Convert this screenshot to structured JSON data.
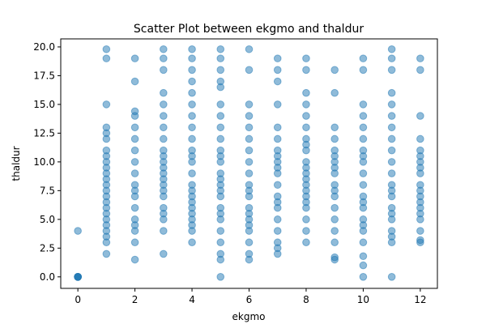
{
  "chart_data": {
    "type": "scatter",
    "title": "Scatter Plot between ekgmo and thaldur",
    "xlabel": "ekgmo",
    "ylabel": "thaldur",
    "xlim": [
      -0.6,
      12.6
    ],
    "ylim": [
      -1.0,
      20.7
    ],
    "xticks": [
      0,
      2,
      4,
      6,
      8,
      10,
      12
    ],
    "yticks": [
      0.0,
      2.5,
      5.0,
      7.5,
      10.0,
      12.5,
      15.0,
      17.5,
      20.0
    ],
    "xtick_labels": [
      "0",
      "2",
      "4",
      "6",
      "8",
      "10",
      "12"
    ],
    "ytick_labels": [
      "0.0",
      "2.5",
      "5.0",
      "7.5",
      "10.0",
      "12.5",
      "15.0",
      "17.5",
      "20.0"
    ],
    "grid": false,
    "legend": "none",
    "point_color": "#1f77b4",
    "point_alpha": 0.5,
    "series": [
      {
        "points": [
          [
            0,
            0
          ],
          [
            0,
            0
          ],
          [
            0,
            0
          ],
          [
            0,
            0
          ],
          [
            0,
            0
          ],
          [
            0,
            4
          ],
          [
            1,
            2
          ],
          [
            1,
            3
          ],
          [
            1,
            3.5
          ],
          [
            1,
            4
          ],
          [
            1,
            4.5
          ],
          [
            1,
            5
          ],
          [
            1,
            5.5
          ],
          [
            1,
            6
          ],
          [
            1,
            6.5
          ],
          [
            1,
            7
          ],
          [
            1,
            7.5
          ],
          [
            1,
            8
          ],
          [
            1,
            8.5
          ],
          [
            1,
            9
          ],
          [
            1,
            9.5
          ],
          [
            1,
            10
          ],
          [
            1,
            10.5
          ],
          [
            1,
            11
          ],
          [
            1,
            12
          ],
          [
            1,
            12.5
          ],
          [
            1,
            13
          ],
          [
            1,
            15
          ],
          [
            1,
            19
          ],
          [
            1,
            19.8
          ],
          [
            2,
            1.5
          ],
          [
            2,
            3
          ],
          [
            2,
            4
          ],
          [
            2,
            4.5
          ],
          [
            2,
            5
          ],
          [
            2,
            6
          ],
          [
            2,
            7
          ],
          [
            2,
            7.5
          ],
          [
            2,
            8
          ],
          [
            2,
            9
          ],
          [
            2,
            10
          ],
          [
            2,
            11
          ],
          [
            2,
            12
          ],
          [
            2,
            13
          ],
          [
            2,
            14
          ],
          [
            2,
            14.4
          ],
          [
            2,
            17
          ],
          [
            2,
            19
          ],
          [
            3,
            2
          ],
          [
            3,
            4
          ],
          [
            3,
            5
          ],
          [
            3,
            5.5
          ],
          [
            3,
            6
          ],
          [
            3,
            7
          ],
          [
            3,
            7.5
          ],
          [
            3,
            8
          ],
          [
            3,
            8.5
          ],
          [
            3,
            9
          ],
          [
            3,
            9.5
          ],
          [
            3,
            10
          ],
          [
            3,
            10.5
          ],
          [
            3,
            11
          ],
          [
            3,
            12
          ],
          [
            3,
            13
          ],
          [
            3,
            14
          ],
          [
            3,
            15
          ],
          [
            3,
            16
          ],
          [
            3,
            18
          ],
          [
            3,
            19
          ],
          [
            3,
            19.8
          ],
          [
            4,
            3
          ],
          [
            4,
            4
          ],
          [
            4,
            4.5
          ],
          [
            4,
            5
          ],
          [
            4,
            5.5
          ],
          [
            4,
            6
          ],
          [
            4,
            6.5
          ],
          [
            4,
            7
          ],
          [
            4,
            7.5
          ],
          [
            4,
            8
          ],
          [
            4,
            9
          ],
          [
            4,
            10
          ],
          [
            4,
            10.5
          ],
          [
            4,
            11
          ],
          [
            4,
            12
          ],
          [
            4,
            13
          ],
          [
            4,
            14
          ],
          [
            4,
            15
          ],
          [
            4,
            16
          ],
          [
            4,
            17
          ],
          [
            4,
            18
          ],
          [
            4,
            19
          ],
          [
            4,
            19.8
          ],
          [
            5,
            0
          ],
          [
            5,
            1.5
          ],
          [
            5,
            2
          ],
          [
            5,
            3
          ],
          [
            5,
            4
          ],
          [
            5,
            5
          ],
          [
            5,
            5.5
          ],
          [
            5,
            6
          ],
          [
            5,
            7
          ],
          [
            5,
            7.5
          ],
          [
            5,
            8
          ],
          [
            5,
            8.5
          ],
          [
            5,
            9
          ],
          [
            5,
            10
          ],
          [
            5,
            10.5
          ],
          [
            5,
            11
          ],
          [
            5,
            12
          ],
          [
            5,
            13
          ],
          [
            5,
            14
          ],
          [
            5,
            15
          ],
          [
            5,
            16.5
          ],
          [
            5,
            17
          ],
          [
            5,
            18
          ],
          [
            5,
            19
          ],
          [
            5,
            19.8
          ],
          [
            6,
            1.5
          ],
          [
            6,
            2
          ],
          [
            6,
            3
          ],
          [
            6,
            4
          ],
          [
            6,
            4.5
          ],
          [
            6,
            5
          ],
          [
            6,
            5.5
          ],
          [
            6,
            6
          ],
          [
            6,
            7
          ],
          [
            6,
            7.5
          ],
          [
            6,
            8
          ],
          [
            6,
            9
          ],
          [
            6,
            10
          ],
          [
            6,
            11
          ],
          [
            6,
            12
          ],
          [
            6,
            13
          ],
          [
            6,
            14
          ],
          [
            6,
            15
          ],
          [
            6,
            18
          ],
          [
            6,
            19.8
          ],
          [
            7,
            2
          ],
          [
            7,
            2.5
          ],
          [
            7,
            3
          ],
          [
            7,
            4
          ],
          [
            7,
            5
          ],
          [
            7,
            6
          ],
          [
            7,
            6.5
          ],
          [
            7,
            7
          ],
          [
            7,
            8
          ],
          [
            7,
            9
          ],
          [
            7,
            9.5
          ],
          [
            7,
            10
          ],
          [
            7,
            10.5
          ],
          [
            7,
            11
          ],
          [
            7,
            12
          ],
          [
            7,
            13
          ],
          [
            7,
            15
          ],
          [
            7,
            17
          ],
          [
            7,
            18
          ],
          [
            7,
            19
          ],
          [
            8,
            3
          ],
          [
            8,
            4
          ],
          [
            8,
            5
          ],
          [
            8,
            6
          ],
          [
            8,
            6.5
          ],
          [
            8,
            7
          ],
          [
            8,
            7.5
          ],
          [
            8,
            8
          ],
          [
            8,
            8.5
          ],
          [
            8,
            9
          ],
          [
            8,
            9.5
          ],
          [
            8,
            10
          ],
          [
            8,
            11
          ],
          [
            8,
            11.5
          ],
          [
            8,
            12
          ],
          [
            8,
            13
          ],
          [
            8,
            14
          ],
          [
            8,
            15
          ],
          [
            8,
            16
          ],
          [
            8,
            18
          ],
          [
            8,
            19
          ],
          [
            9,
            1.5
          ],
          [
            9,
            1.7
          ],
          [
            9,
            3
          ],
          [
            9,
            4
          ],
          [
            9,
            5
          ],
          [
            9,
            6
          ],
          [
            9,
            7
          ],
          [
            9,
            7.5
          ],
          [
            9,
            8
          ],
          [
            9,
            9
          ],
          [
            9,
            9.5
          ],
          [
            9,
            10
          ],
          [
            9,
            10.5
          ],
          [
            9,
            11
          ],
          [
            9,
            12
          ],
          [
            9,
            13
          ],
          [
            9,
            16
          ],
          [
            9,
            18
          ],
          [
            10,
            0
          ],
          [
            10,
            1
          ],
          [
            10,
            1.8
          ],
          [
            10,
            3
          ],
          [
            10,
            4
          ],
          [
            10,
            4.5
          ],
          [
            10,
            5
          ],
          [
            10,
            6
          ],
          [
            10,
            6.5
          ],
          [
            10,
            7
          ],
          [
            10,
            8
          ],
          [
            10,
            9
          ],
          [
            10,
            10
          ],
          [
            10,
            10.5
          ],
          [
            10,
            11
          ],
          [
            10,
            12
          ],
          [
            10,
            13
          ],
          [
            10,
            14
          ],
          [
            10,
            15
          ],
          [
            10,
            18
          ],
          [
            10,
            19
          ],
          [
            11,
            0
          ],
          [
            11,
            3
          ],
          [
            11,
            3.5
          ],
          [
            11,
            4
          ],
          [
            11,
            5
          ],
          [
            11,
            5.5
          ],
          [
            11,
            6
          ],
          [
            11,
            7
          ],
          [
            11,
            7.5
          ],
          [
            11,
            8
          ],
          [
            11,
            9
          ],
          [
            11,
            10
          ],
          [
            11,
            11
          ],
          [
            11,
            12
          ],
          [
            11,
            13
          ],
          [
            11,
            14
          ],
          [
            11,
            15
          ],
          [
            11,
            16
          ],
          [
            11,
            18
          ],
          [
            11,
            19
          ],
          [
            11,
            19.8
          ],
          [
            12,
            3
          ],
          [
            12,
            3.2
          ],
          [
            12,
            4
          ],
          [
            12,
            5
          ],
          [
            12,
            5.5
          ],
          [
            12,
            6
          ],
          [
            12,
            6.5
          ],
          [
            12,
            7
          ],
          [
            12,
            7.5
          ],
          [
            12,
            8
          ],
          [
            12,
            9
          ],
          [
            12,
            9.5
          ],
          [
            12,
            10
          ],
          [
            12,
            10.5
          ],
          [
            12,
            11
          ],
          [
            12,
            12
          ],
          [
            12,
            14
          ],
          [
            12,
            18
          ],
          [
            12,
            19
          ]
        ]
      }
    ]
  }
}
